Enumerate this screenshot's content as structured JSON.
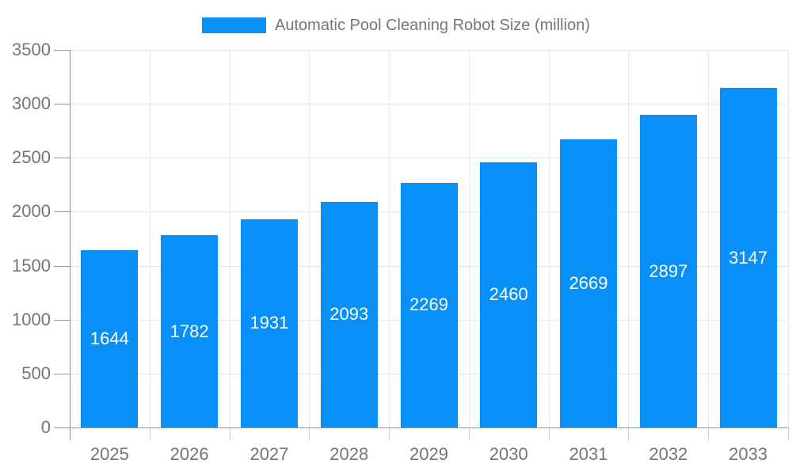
{
  "chart_data": {
    "type": "bar",
    "title": "Automatic Pool Cleaning Robot Size (million)",
    "categories": [
      "2025",
      "2026",
      "2027",
      "2028",
      "2029",
      "2030",
      "2031",
      "2032",
      "2033"
    ],
    "values": [
      1644,
      1782,
      1931,
      2093,
      2269,
      2460,
      2669,
      2897,
      3147
    ],
    "xlabel": "",
    "ylabel": "",
    "ylim": [
      0,
      3500
    ],
    "ytick_step": 500,
    "yticks": [
      0,
      500,
      1000,
      1500,
      2000,
      2500,
      3000,
      3500
    ],
    "legend_position": "top",
    "grid": true,
    "value_labels_position": "inside-center",
    "colors": {
      "bar": "#0890f8",
      "value_label": "#ffffff",
      "axis_text": "#757575",
      "axis_line": "#888888",
      "x_axis_line": "#999999",
      "grid_line": "#e8e8e8",
      "x_tick": "#cccccc"
    }
  }
}
